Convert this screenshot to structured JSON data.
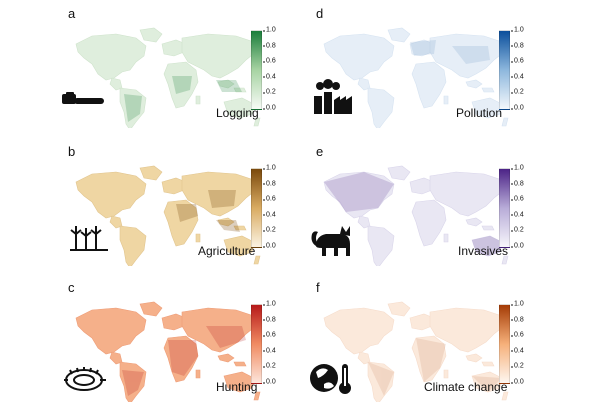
{
  "panels": [
    {
      "letter": "a",
      "title": "Logging",
      "icon": "chainsaw-icon",
      "base": "#dfeedd",
      "accent": "#1b7e3b",
      "colorbar": [
        "#f7fbf6",
        "#a7d3a3",
        "#1b7e3b"
      ]
    },
    {
      "letter": "b",
      "title": "Agriculture",
      "icon": "crops-icon",
      "base": "#efd6a3",
      "accent": "#7b4a0d",
      "colorbar": [
        "#fbf3e2",
        "#d9ab62",
        "#7b4a0d"
      ]
    },
    {
      "letter": "c",
      "title": "Hunting",
      "icon": "trap-icon",
      "base": "#f5b08a",
      "accent": "#b71a1a",
      "colorbar": [
        "#fde6dc",
        "#f08b62",
        "#b71a1a"
      ]
    },
    {
      "letter": "d",
      "title": "Pollution",
      "icon": "factory-icon",
      "base": "#e6eef7",
      "accent": "#0b4f9c",
      "colorbar": [
        "#f4f8fc",
        "#8db7dd",
        "#0b4f9c"
      ]
    },
    {
      "letter": "e",
      "title": "Invasives",
      "icon": "cat-icon",
      "base": "#e9e7f3",
      "accent": "#4c2387",
      "colorbar": [
        "#f7f6fb",
        "#b8acd8",
        "#4c2387"
      ]
    },
    {
      "letter": "f",
      "title": "Climate change",
      "icon": "globe-thermometer-icon",
      "base": "#fbe9db",
      "accent": "#a53c06",
      "colorbar": [
        "#fef7f1",
        "#f6b07a",
        "#a53c06"
      ]
    }
  ],
  "colorbar_ticks": [
    "1.0",
    "0.8",
    "0.6",
    "0.4",
    "0.2",
    "0.0"
  ]
}
